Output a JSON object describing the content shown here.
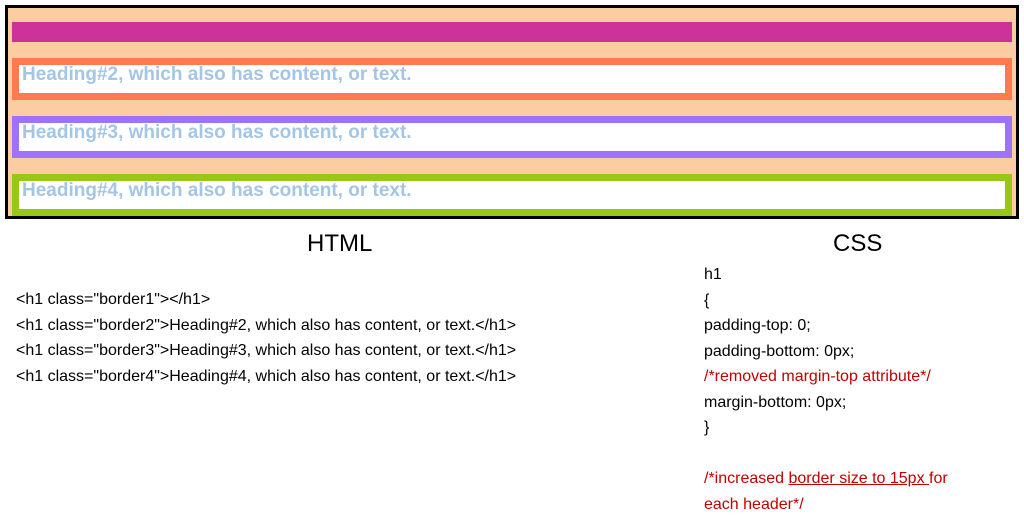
{
  "demo": {
    "headings": [
      {
        "text": "",
        "border_color": "#cc3399"
      },
      {
        "text": "Heading#2, which also has content, or text.",
        "border_color": "#fe7b52"
      },
      {
        "text": "Heading#3, which also has content, or text.",
        "border_color": "#9e73fb"
      },
      {
        "text": "Heading#4, which also has content, or text.",
        "border_color": "#99c715"
      }
    ],
    "background_color": "#fccca2",
    "text_color": "#a4c5e5"
  },
  "html_panel": {
    "title": "HTML",
    "lines": [
      "<h1 class=\"border1\"></h1>",
      "<h1 class=\"border2\">Heading#2, which also has content, or text.</h1>",
      "<h1 class=\"border3\">Heading#3, which also has content, or text.</h1>",
      "<h1 class=\"border4\">Heading#4, which also has content, or text.</h1>"
    ]
  },
  "css_panel": {
    "title": "CSS",
    "lines": [
      "h1",
      "{",
      "padding-top: 0;",
      "padding-bottom: 0px;"
    ],
    "comment1": "/*removed margin-top attribute*/",
    "lines2": [
      "margin-bottom: 0px;",
      "}"
    ],
    "comment2_prefix": "/*increased ",
    "comment2_underlined": "border size to 15px ",
    "comment2_suffix": "for",
    "comment2_line2": "each header*/",
    "comment_color": "#c00000"
  }
}
